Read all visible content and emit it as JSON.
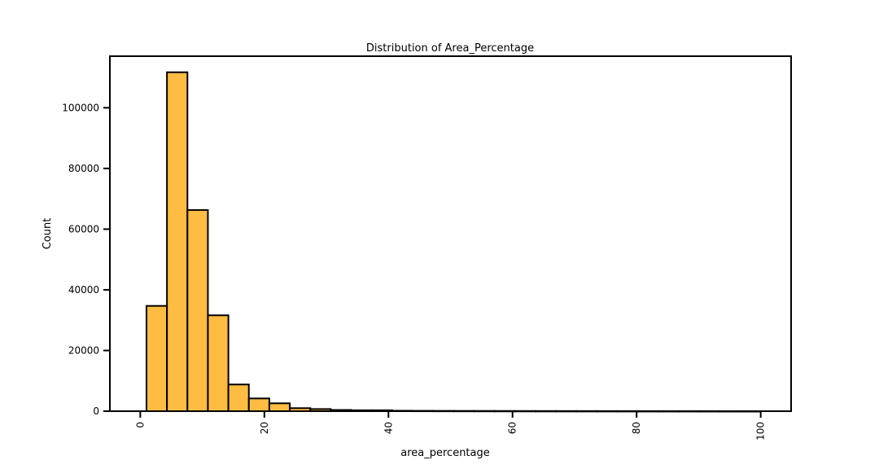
{
  "chart_data": {
    "type": "bar",
    "title": "Distribution of Area_Percentage",
    "xlabel": "area_percentage",
    "ylabel": "Count",
    "bar_color": "#ffbc42",
    "edge_color": "#000000",
    "xlim": [
      -4.9,
      104.9
    ],
    "ylim": [
      0,
      117000
    ],
    "xticks": [
      0,
      20,
      40,
      60,
      80,
      100
    ],
    "xtick_labels": [
      "0",
      "20",
      "40",
      "60",
      "80",
      "100"
    ],
    "yticks": [
      0,
      20000,
      40000,
      60000,
      80000,
      100000
    ],
    "ytick_labels": [
      "0",
      "20000",
      "40000",
      "60000",
      "80000",
      "100000"
    ],
    "grid": false,
    "bins": [
      {
        "x0": 1.0,
        "x1": 4.3,
        "count": 34700
      },
      {
        "x0": 4.3,
        "x1": 7.6,
        "count": 111700
      },
      {
        "x0": 7.6,
        "x1": 10.9,
        "count": 66300
      },
      {
        "x0": 10.9,
        "x1": 14.2,
        "count": 31600
      },
      {
        "x0": 14.2,
        "x1": 17.5,
        "count": 8800
      },
      {
        "x0": 17.5,
        "x1": 20.8,
        "count": 4200
      },
      {
        "x0": 20.8,
        "x1": 24.1,
        "count": 2600
      },
      {
        "x0": 24.1,
        "x1": 27.4,
        "count": 1000
      },
      {
        "x0": 27.4,
        "x1": 30.7,
        "count": 700
      },
      {
        "x0": 30.7,
        "x1": 34.0,
        "count": 400
      },
      {
        "x0": 34.0,
        "x1": 37.3,
        "count": 300
      },
      {
        "x0": 37.3,
        "x1": 40.6,
        "count": 300
      },
      {
        "x0": 40.6,
        "x1": 43.9,
        "count": 150
      },
      {
        "x0": 43.9,
        "x1": 47.2,
        "count": 120
      },
      {
        "x0": 47.2,
        "x1": 50.5,
        "count": 100
      },
      {
        "x0": 50.5,
        "x1": 53.8,
        "count": 90
      },
      {
        "x0": 53.8,
        "x1": 57.1,
        "count": 80
      },
      {
        "x0": 57.1,
        "x1": 60.4,
        "count": 70
      },
      {
        "x0": 60.4,
        "x1": 63.7,
        "count": 60
      },
      {
        "x0": 63.7,
        "x1": 67.0,
        "count": 50
      },
      {
        "x0": 67.0,
        "x1": 70.3,
        "count": 45
      },
      {
        "x0": 70.3,
        "x1": 73.6,
        "count": 40
      },
      {
        "x0": 73.6,
        "x1": 76.9,
        "count": 35
      },
      {
        "x0": 76.9,
        "x1": 80.2,
        "count": 30
      },
      {
        "x0": 80.2,
        "x1": 83.5,
        "count": 25
      },
      {
        "x0": 83.5,
        "x1": 86.8,
        "count": 20
      },
      {
        "x0": 86.8,
        "x1": 90.1,
        "count": 18
      },
      {
        "x0": 90.1,
        "x1": 93.4,
        "count": 15
      },
      {
        "x0": 93.4,
        "x1": 96.7,
        "count": 12
      },
      {
        "x0": 96.7,
        "x1": 100.0,
        "count": 10
      }
    ]
  }
}
